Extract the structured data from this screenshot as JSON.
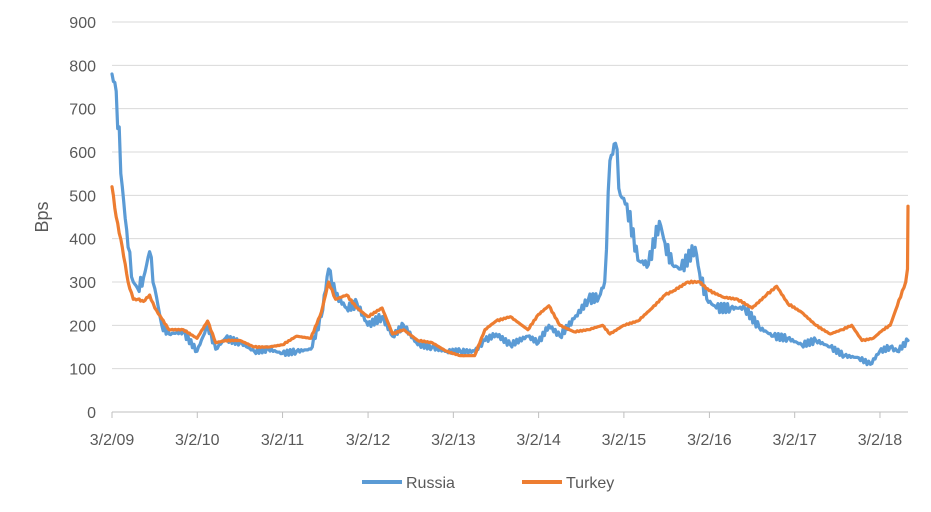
{
  "chart_data": {
    "type": "line",
    "title": "",
    "xlabel": "",
    "ylabel": "Bps",
    "ylim": [
      0,
      900
    ],
    "yticks": [
      0,
      100,
      200,
      300,
      400,
      500,
      600,
      700,
      800,
      900
    ],
    "xlim": [
      "2009-03-02",
      "2018-06-30"
    ],
    "xtick_labels": [
      "3/2/09",
      "3/2/10",
      "3/2/11",
      "3/2/12",
      "3/2/13",
      "3/2/14",
      "3/2/15",
      "3/2/16",
      "3/2/17",
      "3/2/18"
    ],
    "xtick_dates": [
      "2009-03-02",
      "2010-03-02",
      "2011-03-02",
      "2012-03-02",
      "2013-03-02",
      "2014-03-02",
      "2015-03-02",
      "2016-03-02",
      "2017-03-02",
      "2018-03-02"
    ],
    "grid": true,
    "legend_position": "bottom",
    "series": [
      {
        "name": "Russia",
        "color": "#5b9bd5",
        "x": [
          "2009-03-02",
          "2009-03-20",
          "2009-04-15",
          "2009-05-10",
          "2009-06-01",
          "2009-06-20",
          "2009-07-15",
          "2009-08-10",
          "2009-09-01",
          "2009-10-01",
          "2009-11-01",
          "2010-01-01",
          "2010-03-01",
          "2010-04-15",
          "2010-05-20",
          "2010-07-01",
          "2010-09-01",
          "2010-11-01",
          "2011-01-01",
          "2011-03-01",
          "2011-05-01",
          "2011-07-01",
          "2011-08-15",
          "2011-09-15",
          "2011-10-15",
          "2011-12-01",
          "2012-01-15",
          "2012-03-01",
          "2012-05-01",
          "2012-06-15",
          "2012-08-01",
          "2012-10-01",
          "2012-12-01",
          "2013-02-01",
          "2013-04-01",
          "2013-06-01",
          "2013-07-15",
          "2013-09-01",
          "2013-11-01",
          "2014-01-15",
          "2014-03-01",
          "2014-04-15",
          "2014-06-01",
          "2014-08-01",
          "2014-10-01",
          "2014-11-15",
          "2014-12-10",
          "2015-01-01",
          "2015-01-25",
          "2015-02-15",
          "2015-03-15",
          "2015-05-01",
          "2015-06-15",
          "2015-08-01",
          "2015-08-25",
          "2015-09-25",
          "2015-11-01",
          "2016-01-01",
          "2016-01-20",
          "2016-02-20",
          "2016-04-01",
          "2016-06-01",
          "2016-08-01",
          "2016-10-01",
          "2016-12-01",
          "2017-02-01",
          "2017-04-01",
          "2017-06-01",
          "2017-08-01",
          "2017-10-01",
          "2017-12-01",
          "2018-01-20",
          "2018-03-01",
          "2018-04-15",
          "2018-05-15",
          "2018-06-30"
        ],
        "values": [
          780,
          740,
          520,
          380,
          300,
          285,
          310,
          370,
          285,
          200,
          180,
          185,
          140,
          200,
          145,
          170,
          160,
          140,
          145,
          135,
          140,
          145,
          220,
          330,
          270,
          240,
          250,
          200,
          220,
          175,
          200,
          155,
          150,
          140,
          140,
          140,
          165,
          180,
          155,
          175,
          160,
          200,
          175,
          215,
          260,
          265,
          300,
          580,
          620,
          500,
          480,
          350,
          340,
          440,
          390,
          340,
          330,
          380,
          320,
          260,
          240,
          240,
          240,
          195,
          175,
          170,
          155,
          165,
          150,
          130,
          125,
          110,
          140,
          150,
          140,
          165
        ]
      },
      {
        "name": "Turkey",
        "color": "#ed7d31",
        "x": [
          "2009-03-02",
          "2009-03-20",
          "2009-04-15",
          "2009-05-10",
          "2009-06-01",
          "2009-06-20",
          "2009-07-15",
          "2009-08-10",
          "2009-09-01",
          "2009-10-01",
          "2009-11-01",
          "2010-01-01",
          "2010-03-01",
          "2010-04-15",
          "2010-05-20",
          "2010-07-01",
          "2010-09-01",
          "2010-11-01",
          "2011-01-01",
          "2011-03-01",
          "2011-05-01",
          "2011-07-01",
          "2011-08-15",
          "2011-09-15",
          "2011-10-15",
          "2011-12-01",
          "2012-01-15",
          "2012-03-01",
          "2012-05-01",
          "2012-06-15",
          "2012-08-01",
          "2012-10-01",
          "2012-12-01",
          "2013-02-01",
          "2013-04-01",
          "2013-06-01",
          "2013-07-15",
          "2013-09-01",
          "2013-11-01",
          "2014-01-15",
          "2014-03-01",
          "2014-04-15",
          "2014-06-01",
          "2014-08-01",
          "2014-10-01",
          "2014-12-01",
          "2015-01-01",
          "2015-03-01",
          "2015-05-01",
          "2015-07-01",
          "2015-08-25",
          "2015-10-01",
          "2015-12-01",
          "2016-01-20",
          "2016-03-01",
          "2016-05-01",
          "2016-07-01",
          "2016-09-01",
          "2016-11-01",
          "2016-12-15",
          "2017-02-01",
          "2017-04-01",
          "2017-06-01",
          "2017-08-01",
          "2017-09-20",
          "2017-11-01",
          "2017-12-15",
          "2018-02-01",
          "2018-03-15",
          "2018-04-15",
          "2018-05-15",
          "2018-06-20",
          "2018-06-28",
          "2018-06-30"
        ],
        "values": [
          520,
          450,
          380,
          300,
          260,
          260,
          255,
          270,
          240,
          215,
          190,
          190,
          170,
          210,
          160,
          165,
          165,
          150,
          150,
          155,
          175,
          170,
          230,
          300,
          260,
          270,
          240,
          220,
          240,
          180,
          190,
          165,
          160,
          140,
          130,
          130,
          190,
          210,
          220,
          190,
          225,
          245,
          200,
          185,
          190,
          200,
          180,
          200,
          210,
          240,
          270,
          280,
          300,
          300,
          280,
          265,
          260,
          240,
          270,
          290,
          250,
          230,
          200,
          180,
          190,
          200,
          165,
          170,
          190,
          200,
          245,
          300,
          330,
          475
        ]
      }
    ]
  }
}
